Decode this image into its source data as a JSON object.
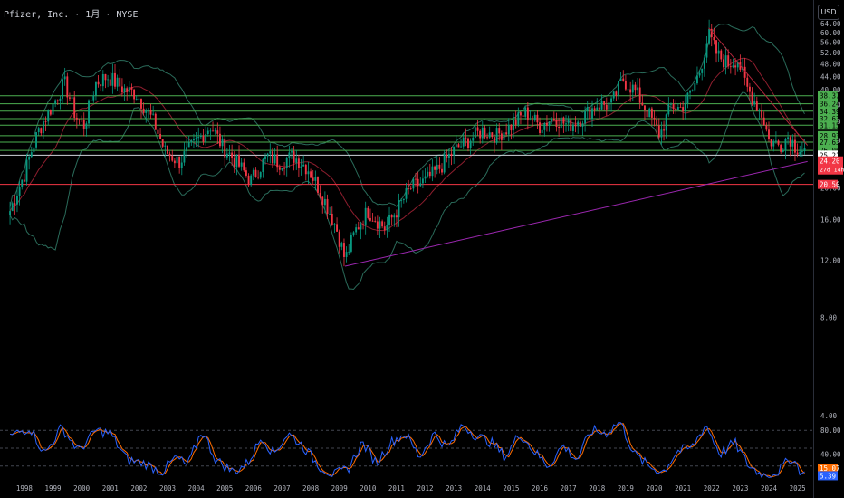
{
  "header": {
    "title": "Pfizer, Inc. · 1月 · NYSE",
    "currency": "USD"
  },
  "colors": {
    "up": "#089981",
    "down": "#f23645",
    "band": "#2a6b5a",
    "basis": "#b2263a",
    "level": "#4caf50",
    "trend": "#9c27b0",
    "support": "#f23645",
    "stoch_k": "#2962ff",
    "stoch_d": "#ff6d00"
  },
  "chart_data": {
    "type": "candlestick",
    "symbol": "Pfizer, Inc.",
    "interval": "1月",
    "exchange": "NYSE",
    "y_scale": "log",
    "ylim": [
      4.0,
      69.0
    ],
    "y_ticks": [
      "4.00",
      "8.00",
      "12.00",
      "16.00",
      "20.00",
      "24.00",
      "28.00",
      "32.00",
      "36.00",
      "40.00",
      "44.00",
      "48.00",
      "52.00",
      "56.00",
      "60.00",
      "64.00"
    ],
    "x_ticks": [
      "1998",
      "1999",
      "2000",
      "2001",
      "2002",
      "2003",
      "2004",
      "2005",
      "2006",
      "2007",
      "2008",
      "2009",
      "2010",
      "2011",
      "2012",
      "2013",
      "2014",
      "2015",
      "2016",
      "2017",
      "2018",
      "2019",
      "2020",
      "2021",
      "2022",
      "2023",
      "2024",
      "2025"
    ],
    "price_anchors": [
      [
        1997.5,
        17
      ],
      [
        1998.0,
        22
      ],
      [
        1998.5,
        30
      ],
      [
        1999.0,
        36
      ],
      [
        1999.4,
        42
      ],
      [
        1999.8,
        33
      ],
      [
        2000.1,
        31
      ],
      [
        2000.5,
        42
      ],
      [
        2000.9,
        44
      ],
      [
        2001.5,
        40
      ],
      [
        2001.9,
        39
      ],
      [
        2002.5,
        32
      ],
      [
        2002.9,
        26
      ],
      [
        2003.4,
        24
      ],
      [
        2003.9,
        27
      ],
      [
        2004.2,
        29
      ],
      [
        2004.5,
        31
      ],
      [
        2004.9,
        27
      ],
      [
        2005.4,
        24
      ],
      [
        2005.9,
        21
      ],
      [
        2006.5,
        25
      ],
      [
        2006.9,
        24
      ],
      [
        2007.4,
        25
      ],
      [
        2007.9,
        23
      ],
      [
        2008.4,
        19
      ],
      [
        2008.9,
        15
      ],
      [
        2009.2,
        12
      ],
      [
        2009.6,
        15
      ],
      [
        2010.0,
        17
      ],
      [
        2010.6,
        15
      ],
      [
        2011.0,
        17
      ],
      [
        2011.5,
        20
      ],
      [
        2012.0,
        21
      ],
      [
        2012.5,
        23
      ],
      [
        2013.0,
        26
      ],
      [
        2013.5,
        28
      ],
      [
        2014.0,
        30
      ],
      [
        2014.5,
        29
      ],
      [
        2015.0,
        31
      ],
      [
        2015.5,
        34
      ],
      [
        2016.0,
        31
      ],
      [
        2016.5,
        33
      ],
      [
        2017.0,
        31
      ],
      [
        2017.5,
        33
      ],
      [
        2018.0,
        36
      ],
      [
        2018.5,
        36
      ],
      [
        2018.9,
        43
      ],
      [
        2019.3,
        40
      ],
      [
        2019.7,
        35
      ],
      [
        2020.2,
        29
      ],
      [
        2020.6,
        36
      ],
      [
        2020.9,
        35
      ],
      [
        2021.3,
        39
      ],
      [
        2021.6,
        46
      ],
      [
        2021.9,
        59
      ],
      [
        2022.2,
        51
      ],
      [
        2022.6,
        48
      ],
      [
        2022.9,
        50
      ],
      [
        2023.2,
        41
      ],
      [
        2023.5,
        37
      ],
      [
        2023.8,
        33
      ],
      [
        2024.0,
        28
      ],
      [
        2024.4,
        27
      ],
      [
        2024.7,
        29
      ],
      [
        2024.9,
        27
      ],
      [
        2025.2,
        26
      ]
    ],
    "horizontal_levels": [
      {
        "value": 38.37,
        "label": "38.37",
        "kind": "resistance"
      },
      {
        "value": 36.24,
        "label": "36.24",
        "kind": "resistance"
      },
      {
        "value": 34.39,
        "label": "34.39",
        "kind": "resistance"
      },
      {
        "value": 32.63,
        "label": "32.63",
        "kind": "resistance"
      },
      {
        "value": 31.15,
        "label": "31.15",
        "kind": "resistance"
      },
      {
        "value": 28.93,
        "label": "28.93",
        "kind": "resistance"
      },
      {
        "value": 27.63,
        "label": "27.63",
        "kind": "resistance"
      },
      {
        "value": 26.06,
        "label": "26.06",
        "kind": "resistance"
      },
      {
        "value": 25.21,
        "label": "25.21",
        "kind": "reference"
      },
      {
        "value": 20.5,
        "label": "20.50",
        "kind": "support"
      }
    ],
    "last_price": {
      "value": 24.2,
      "label": "24.20",
      "countdown": "27d 14h"
    },
    "trendlines": [
      {
        "name": "uptrend",
        "from": [
          2009.2,
          11.5
        ],
        "to": [
          2025.35,
          24.1
        ]
      },
      {
        "name": "downtrend",
        "from": [
          2021.9,
          62.0
        ],
        "to": [
          2025.35,
          27.0
        ]
      }
    ],
    "stochastic": {
      "ylim": [
        0,
        100
      ],
      "y_ticks": [
        "40.00",
        "80.00"
      ],
      "guide_levels": [
        20,
        50,
        80
      ],
      "last_k": "5.39",
      "last_d": "15.07",
      "anchors": [
        [
          1997.5,
          70
        ],
        [
          1998.2,
          85
        ],
        [
          1998.7,
          40
        ],
        [
          1999.3,
          85
        ],
        [
          1999.9,
          45
        ],
        [
          2000.5,
          80
        ],
        [
          2001.0,
          75
        ],
        [
          2001.6,
          30
        ],
        [
          2002.2,
          25
        ],
        [
          2002.8,
          10
        ],
        [
          2003.3,
          35
        ],
        [
          2003.7,
          20
        ],
        [
          2004.2,
          80
        ],
        [
          2004.7,
          30
        ],
        [
          2005.3,
          10
        ],
        [
          2005.8,
          25
        ],
        [
          2006.3,
          70
        ],
        [
          2006.7,
          40
        ],
        [
          2007.2,
          75
        ],
        [
          2007.7,
          55
        ],
        [
          2008.3,
          20
        ],
        [
          2008.8,
          5
        ],
        [
          2009.3,
          15
        ],
        [
          2009.8,
          60
        ],
        [
          2010.3,
          25
        ],
        [
          2010.8,
          60
        ],
        [
          2011.3,
          75
        ],
        [
          2011.8,
          35
        ],
        [
          2012.3,
          75
        ],
        [
          2012.8,
          50
        ],
        [
          2013.3,
          90
        ],
        [
          2013.8,
          70
        ],
        [
          2014.3,
          60
        ],
        [
          2014.8,
          35
        ],
        [
          2015.3,
          75
        ],
        [
          2015.8,
          45
        ],
        [
          2016.3,
          20
        ],
        [
          2016.8,
          55
        ],
        [
          2017.3,
          30
        ],
        [
          2017.8,
          80
        ],
        [
          2018.3,
          75
        ],
        [
          2018.8,
          95
        ],
        [
          2019.3,
          40
        ],
        [
          2019.8,
          20
        ],
        [
          2020.3,
          10
        ],
        [
          2020.8,
          45
        ],
        [
          2021.3,
          50
        ],
        [
          2021.8,
          90
        ],
        [
          2022.3,
          40
        ],
        [
          2022.8,
          60
        ],
        [
          2023.3,
          20
        ],
        [
          2023.8,
          5
        ],
        [
          2024.3,
          10
        ],
        [
          2024.8,
          35
        ],
        [
          2025.2,
          5
        ]
      ]
    }
  }
}
